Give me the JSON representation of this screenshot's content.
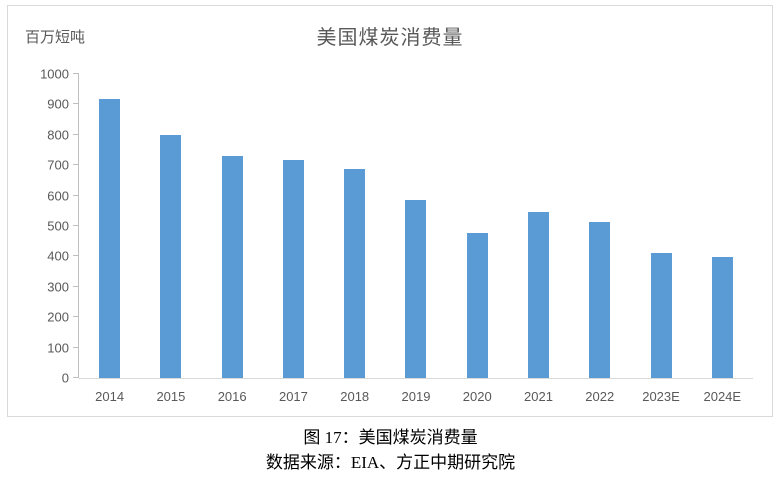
{
  "chart_data": {
    "type": "bar",
    "title": "美国煤炭消费量",
    "unit": "百万短吨",
    "categories": [
      "2014",
      "2015",
      "2016",
      "2017",
      "2018",
      "2019",
      "2020",
      "2021",
      "2022",
      "2023E",
      "2024E"
    ],
    "values": [
      917,
      798,
      731,
      716,
      688,
      586,
      477,
      546,
      512,
      410,
      398
    ],
    "ylim": [
      0,
      1000
    ],
    "ytick_interval": 100,
    "ytick_labels": [
      "0",
      "100",
      "200",
      "300",
      "400",
      "500",
      "600",
      "700",
      "800",
      "900",
      "1000"
    ],
    "grid": false,
    "legend": "none"
  },
  "style": {
    "bar_color": "#5B9BD5",
    "axis_color": "#BFBFBF",
    "border_color": "#D9D9D9",
    "label_color": "#595959"
  },
  "caption": {
    "line1": "图 17：美国煤炭消费量",
    "line2": "数据来源：EIA、方正中期研究院"
  }
}
